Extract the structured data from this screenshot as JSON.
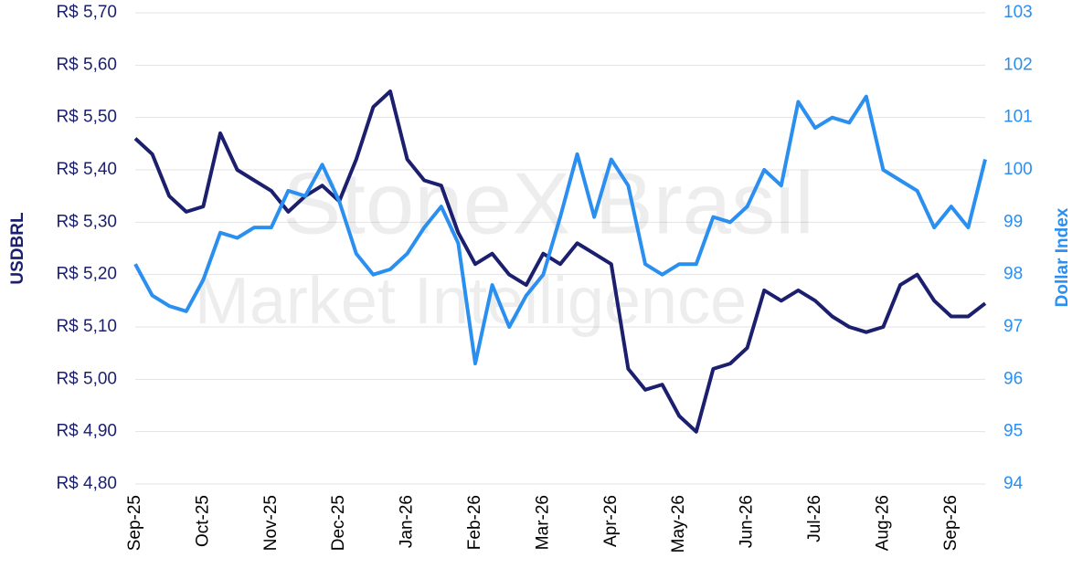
{
  "chart_data": {
    "type": "line",
    "watermark": [
      "StoneX Brasil",
      "Market Intelligence"
    ],
    "ylabel": "USDBRL",
    "y2label": "Dollar Index",
    "categories": [
      "Sep-25",
      null,
      null,
      null,
      "Oct-25",
      null,
      null,
      null,
      "Nov-25",
      null,
      null,
      null,
      "Dec-25",
      null,
      null,
      null,
      "Jan-26",
      null,
      null,
      null,
      "Feb-26",
      null,
      null,
      null,
      "Mar-26",
      null,
      null,
      null,
      "Apr-26",
      null,
      null,
      null,
      "May-26",
      null,
      null,
      null,
      "Jun-26",
      null,
      null,
      null,
      "Jul-26",
      null,
      null,
      null,
      "Aug-26",
      null,
      null,
      null,
      "Sep-26",
      null,
      null
    ],
    "series": [
      {
        "color": "#1b1f6e",
        "axis": "y",
        "values": [
          5.46,
          5.43,
          5.35,
          5.32,
          5.33,
          5.47,
          5.4,
          5.38,
          5.36,
          5.32,
          5.35,
          5.37,
          5.34,
          5.42,
          5.52,
          5.55,
          5.42,
          5.38,
          5.37,
          5.28,
          5.22,
          5.24,
          5.2,
          5.18,
          5.24,
          5.22,
          5.26,
          5.24,
          5.22,
          5.02,
          4.98,
          4.99,
          4.93,
          4.9,
          5.02,
          5.03,
          5.06,
          5.17,
          5.15,
          5.17,
          5.15,
          5.12,
          5.1,
          5.09,
          5.1,
          5.18,
          5.2,
          5.15,
          5.12,
          5.12,
          5.145
        ]
      },
      {
        "color": "#2b8ff0",
        "axis": "y2",
        "values": [
          98.2,
          97.6,
          97.4,
          97.3,
          97.9,
          98.8,
          98.7,
          98.9,
          98.9,
          99.6,
          99.5,
          100.1,
          99.4,
          98.4,
          98.0,
          98.1,
          98.4,
          98.9,
          99.3,
          98.6,
          96.3,
          97.8,
          97.0,
          97.6,
          98.0,
          99.1,
          100.3,
          99.1,
          100.2,
          99.7,
          98.2,
          98.0,
          98.2,
          98.2,
          99.1,
          99.0,
          99.3,
          100.0,
          99.7,
          101.3,
          100.8,
          101.0,
          100.9,
          101.4,
          100.0,
          99.8,
          99.6,
          98.9,
          99.3,
          98.9,
          100.2
        ]
      }
    ],
    "ylim": [
      4.8,
      5.7
    ],
    "yticks": [
      {
        "value": 4.8,
        "label": "R$ 4,80"
      },
      {
        "value": 4.9,
        "label": "R$ 4,90"
      },
      {
        "value": 5.0,
        "label": "R$ 5,00"
      },
      {
        "value": 5.1,
        "label": "R$ 5,10"
      },
      {
        "value": 5.2,
        "label": "R$ 5,20"
      },
      {
        "value": 5.3,
        "label": "R$ 5,30"
      },
      {
        "value": 5.4,
        "label": "R$ 5,40"
      },
      {
        "value": 5.5,
        "label": "R$ 5,50"
      },
      {
        "value": 5.6,
        "label": "R$ 5,60"
      },
      {
        "value": 5.7,
        "label": "R$ 5,70"
      }
    ],
    "y2lim": [
      94,
      103
    ],
    "y2ticks": [
      94,
      95,
      96,
      97,
      98,
      99,
      100,
      101,
      102,
      103
    ],
    "grid": true
  }
}
